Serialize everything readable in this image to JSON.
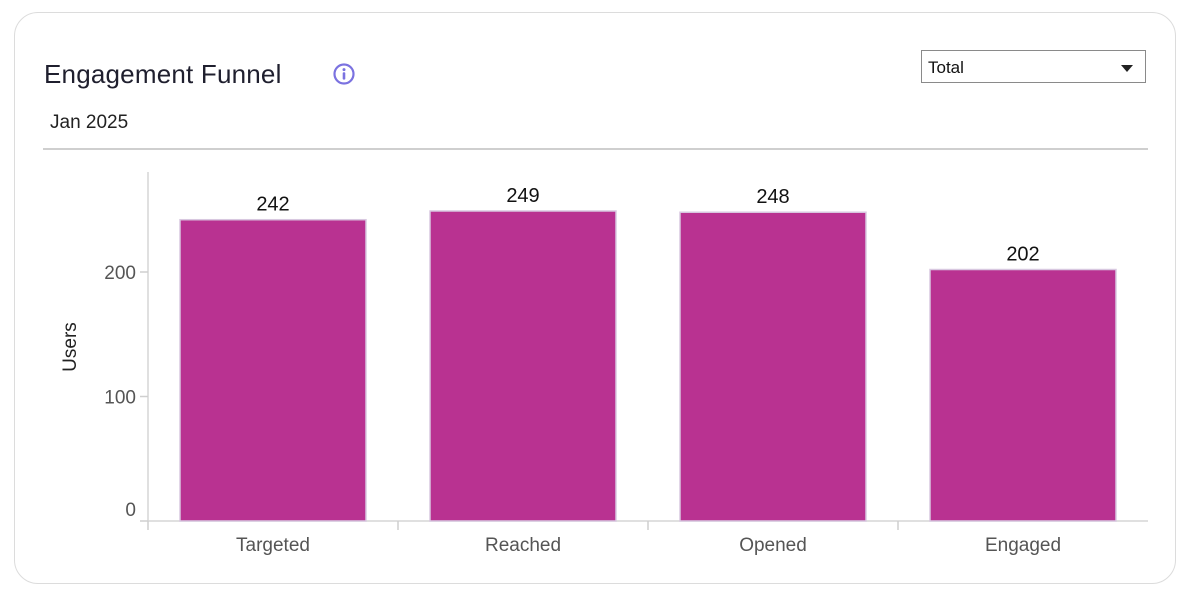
{
  "header": {
    "title": "Engagement Funnel",
    "subtitle": "Jan 2025",
    "info_icon": "info-icon"
  },
  "filter": {
    "selected": "Total"
  },
  "colors": {
    "bar": "#b93291",
    "bar_stroke": "#d8c8e0",
    "info_icon": "#7b72e0"
  },
  "chart_data": {
    "type": "bar",
    "categories": [
      "Targeted",
      "Reached",
      "Opened",
      "Engaged"
    ],
    "values": [
      242,
      249,
      248,
      202
    ],
    "ylabel": "Users",
    "yticks": [
      0,
      100,
      200
    ],
    "ylim": [
      0,
      280
    ],
    "grid": false,
    "data_labels": true
  }
}
